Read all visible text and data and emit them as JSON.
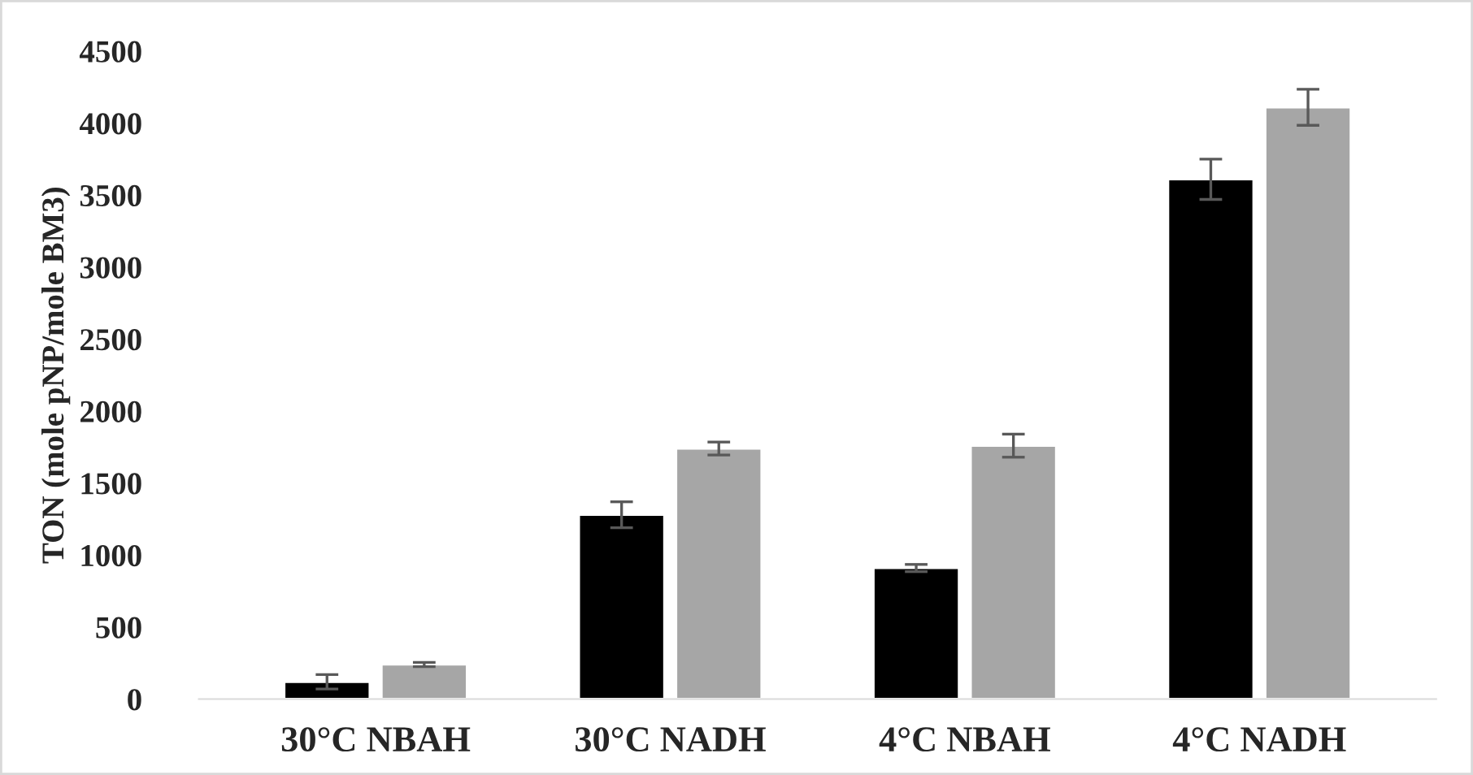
{
  "chart_data": {
    "type": "bar",
    "ylabel": "TON (mole pNP/mole BM3)",
    "categories": [
      "30°C NBAH",
      "30°C NADH",
      "4°C NBAH",
      "4°C NADH"
    ],
    "series": [
      {
        "color": "#000000",
        "values": [
          120,
          1280,
          910,
          3610
        ],
        "errors": [
          50,
          90,
          25,
          140
        ]
      },
      {
        "color": "#a6a6a6",
        "values": [
          240,
          1740,
          1760,
          4110
        ],
        "errors": [
          15,
          45,
          80,
          125
        ]
      }
    ],
    "ylim": [
      0,
      4500
    ],
    "yticks": [
      0,
      500,
      1000,
      1500,
      2000,
      2500,
      3000,
      3500,
      4000,
      4500
    ],
    "grid": false,
    "legend": false
  }
}
